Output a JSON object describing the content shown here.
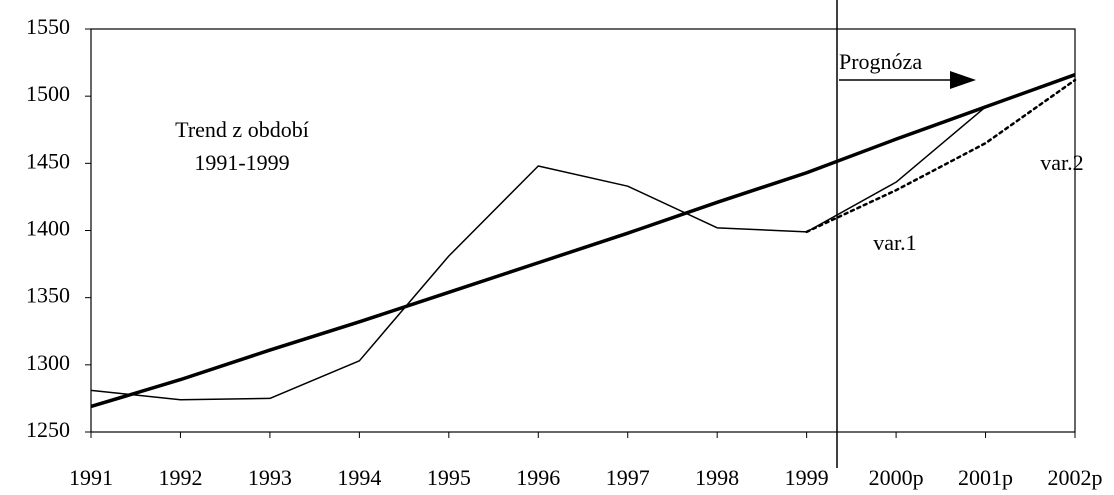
{
  "chart_data": {
    "type": "line",
    "categories": [
      "1991",
      "1992",
      "1993",
      "1994",
      "1995",
      "1996",
      "1997",
      "1998",
      "1999",
      "2000p",
      "2001p",
      "2002p"
    ],
    "series": [
      {
        "color": "#000000",
        "line_width": 1.5,
        "dash": "solid",
        "values": [
          1281,
          1274,
          1275,
          1303,
          1381,
          1448,
          1433,
          1402,
          1399,
          null,
          null,
          null
        ]
      },
      {
        "color": "#000000",
        "line_width": 3.5,
        "dash": "solid",
        "values": [
          1269,
          1289,
          1311,
          1332,
          1354,
          1376,
          1398,
          1421,
          1443,
          1468,
          1492,
          1516
        ]
      },
      {
        "name": "var.1",
        "color": "#000000",
        "line_width": 1.5,
        "dash": "solid",
        "values": [
          null,
          null,
          null,
          null,
          null,
          null,
          null,
          null,
          1399,
          1436,
          1492,
          1516
        ]
      },
      {
        "name": "var.2",
        "color": "#000000",
        "line_width": 2.5,
        "dash": "dotted",
        "values": [
          null,
          null,
          null,
          null,
          null,
          null,
          null,
          null,
          1399,
          1430,
          1465,
          1512
        ]
      }
    ],
    "annotations": [
      "Trend z období",
      "1991-1999",
      "Prognóza"
    ],
    "ylim": [
      1250,
      1550
    ],
    "yticks": [
      1250,
      1300,
      1350,
      1400,
      1450,
      1500,
      1550
    ],
    "grid": false
  }
}
